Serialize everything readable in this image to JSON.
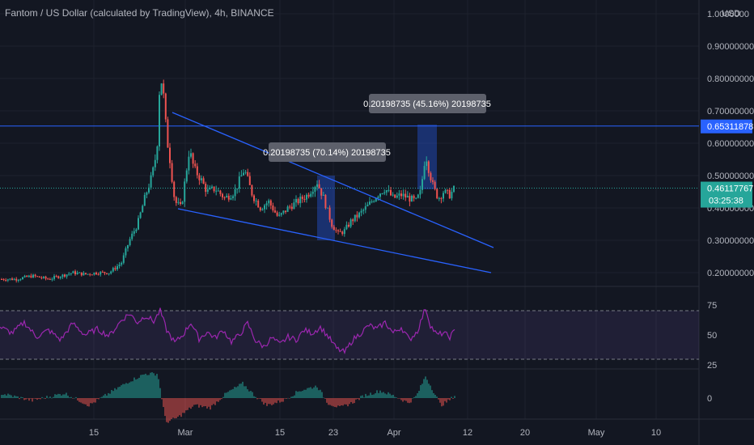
{
  "header": {
    "symbol_title": "Fantom / US Dollar (calculated by TradingView), 4h, BINANCE",
    "currency": "USD"
  },
  "price_axis": {
    "ticks": [
      {
        "label": "0.20000000",
        "value": 0.2
      },
      {
        "label": "0.30000000",
        "value": 0.3
      },
      {
        "label": "0.40000000",
        "value": 0.4
      },
      {
        "label": "0.50000000",
        "value": 0.5
      },
      {
        "label": "0.60000000",
        "value": 0.6
      },
      {
        "label": "0.70000000",
        "value": 0.7
      },
      {
        "label": "0.80000000",
        "value": 0.8
      },
      {
        "label": "0.90000000",
        "value": 0.9
      },
      {
        "label": "1.0000000",
        "value": 1.0
      }
    ],
    "hline_label": "0.65311878",
    "hline_value": 0.65311878,
    "last_price_label": "0.46117767",
    "last_price_value": 0.46117767,
    "countdown": "03:25:38"
  },
  "rsi_axis": {
    "ticks": [
      "75",
      "50",
      "25"
    ]
  },
  "macd_axis": {
    "ticks": [
      "0"
    ]
  },
  "time_axis": {
    "ticks": [
      "15",
      "Mar",
      "15",
      "23",
      "Apr",
      "12",
      "20",
      "May",
      "10"
    ]
  },
  "annotations": {
    "measure_1": "0.20198735 (70.14%) 20198735",
    "measure_2": "0.20198735 (45.16%) 20198735"
  },
  "colors": {
    "background": "#131722",
    "up": "#26a69a",
    "down": "#ef5350",
    "trendline": "#2962ff",
    "rsi": "#9c27b0",
    "last_price_tag": "#26a69a",
    "hline_tag": "#2962ff"
  },
  "chart_data": {
    "type": "candlestick",
    "panels": [
      "price",
      "rsi",
      "macd_histogram"
    ],
    "timeframe": "4h",
    "price_range": [
      0.17,
      1.0
    ],
    "rsi_range": [
      25,
      75
    ],
    "trend_channel": {
      "upper": [
        {
          "date": "Feb 22",
          "price": 0.69
        },
        {
          "date": "Apr 16",
          "price": 0.27
        }
      ],
      "lower": [
        {
          "date": "Feb 24",
          "price": 0.385
        },
        {
          "date": "Apr 16",
          "price": 0.19
        }
      ]
    },
    "horizontal_level": 0.65311878,
    "price_path": [
      [
        0,
        0.18
      ],
      [
        20,
        0.18
      ],
      [
        40,
        0.19
      ],
      [
        60,
        0.18
      ],
      [
        75,
        0.19
      ],
      [
        90,
        0.2
      ],
      [
        105,
        0.195
      ],
      [
        120,
        0.2
      ],
      [
        135,
        0.2
      ],
      [
        150,
        0.23
      ],
      [
        160,
        0.3
      ],
      [
        170,
        0.35
      ],
      [
        180,
        0.44
      ],
      [
        188,
        0.5
      ],
      [
        194,
        0.58
      ],
      [
        198,
        0.82
      ],
      [
        202,
        0.75
      ],
      [
        206,
        0.62
      ],
      [
        210,
        0.55
      ],
      [
        216,
        0.42
      ],
      [
        224,
        0.4
      ],
      [
        234,
        0.58
      ],
      [
        240,
        0.52
      ],
      [
        248,
        0.49
      ],
      [
        256,
        0.45
      ],
      [
        266,
        0.46
      ],
      [
        278,
        0.43
      ],
      [
        290,
        0.45
      ],
      [
        302,
        0.52
      ],
      [
        312,
        0.44
      ],
      [
        322,
        0.4
      ],
      [
        332,
        0.42
      ],
      [
        344,
        0.37
      ],
      [
        356,
        0.4
      ],
      [
        368,
        0.42
      ],
      [
        380,
        0.44
      ],
      [
        392,
        0.48
      ],
      [
        400,
        0.43
      ],
      [
        410,
        0.35
      ],
      [
        418,
        0.32
      ],
      [
        426,
        0.33
      ],
      [
        434,
        0.36
      ],
      [
        444,
        0.38
      ],
      [
        456,
        0.41
      ],
      [
        466,
        0.44
      ],
      [
        476,
        0.46
      ],
      [
        486,
        0.43
      ],
      [
        496,
        0.44
      ],
      [
        506,
        0.43
      ],
      [
        514,
        0.42
      ],
      [
        520,
        0.45
      ],
      [
        526,
        0.57
      ],
      [
        530,
        0.52
      ],
      [
        536,
        0.46
      ],
      [
        542,
        0.43
      ],
      [
        548,
        0.45
      ],
      [
        556,
        0.44
      ],
      [
        562,
        0.46
      ]
    ],
    "rsi_path": [
      [
        0,
        58
      ],
      [
        15,
        52
      ],
      [
        30,
        63
      ],
      [
        45,
        48
      ],
      [
        60,
        55
      ],
      [
        75,
        45
      ],
      [
        90,
        62
      ],
      [
        105,
        50
      ],
      [
        120,
        56
      ],
      [
        135,
        49
      ],
      [
        150,
        65
      ],
      [
        160,
        72
      ],
      [
        170,
        63
      ],
      [
        180,
        70
      ],
      [
        190,
        64
      ],
      [
        198,
        75
      ],
      [
        206,
        55
      ],
      [
        216,
        42
      ],
      [
        226,
        50
      ],
      [
        236,
        63
      ],
      [
        246,
        46
      ],
      [
        256,
        53
      ],
      [
        266,
        47
      ],
      [
        276,
        55
      ],
      [
        286,
        43
      ],
      [
        296,
        50
      ],
      [
        306,
        62
      ],
      [
        316,
        44
      ],
      [
        326,
        38
      ],
      [
        336,
        47
      ],
      [
        346,
        40
      ],
      [
        356,
        48
      ],
      [
        366,
        45
      ],
      [
        376,
        55
      ],
      [
        386,
        52
      ],
      [
        396,
        58
      ],
      [
        406,
        48
      ],
      [
        416,
        36
      ],
      [
        426,
        32
      ],
      [
        436,
        45
      ],
      [
        446,
        52
      ],
      [
        456,
        60
      ],
      [
        466,
        56
      ],
      [
        476,
        63
      ],
      [
        486,
        52
      ],
      [
        496,
        58
      ],
      [
        506,
        45
      ],
      [
        516,
        54
      ],
      [
        526,
        78
      ],
      [
        532,
        60
      ],
      [
        540,
        50
      ],
      [
        548,
        52
      ],
      [
        556,
        48
      ],
      [
        562,
        54
      ]
    ],
    "macd_hist": [
      [
        0,
        0.2
      ],
      [
        40,
        -0.1
      ],
      [
        80,
        0.2
      ],
      [
        110,
        -0.3
      ],
      [
        140,
        0.3
      ],
      [
        160,
        0.7
      ],
      [
        180,
        1.0
      ],
      [
        195,
        1.0
      ],
      [
        205,
        -1.0
      ],
      [
        220,
        -0.8
      ],
      [
        240,
        -0.3
      ],
      [
        260,
        -0.4
      ],
      [
        280,
        0.2
      ],
      [
        300,
        0.6
      ],
      [
        315,
        0.1
      ],
      [
        330,
        -0.3
      ],
      [
        350,
        -0.1
      ],
      [
        370,
        0.3
      ],
      [
        392,
        0.5
      ],
      [
        405,
        -0.2
      ],
      [
        420,
        -0.4
      ],
      [
        435,
        -0.2
      ],
      [
        450,
        0.1
      ],
      [
        470,
        0.3
      ],
      [
        490,
        0.05
      ],
      [
        505,
        -0.2
      ],
      [
        515,
        0.1
      ],
      [
        526,
        0.9
      ],
      [
        534,
        0.4
      ],
      [
        545,
        -0.3
      ],
      [
        555,
        -0.1
      ],
      [
        562,
        0.1
      ]
    ]
  }
}
